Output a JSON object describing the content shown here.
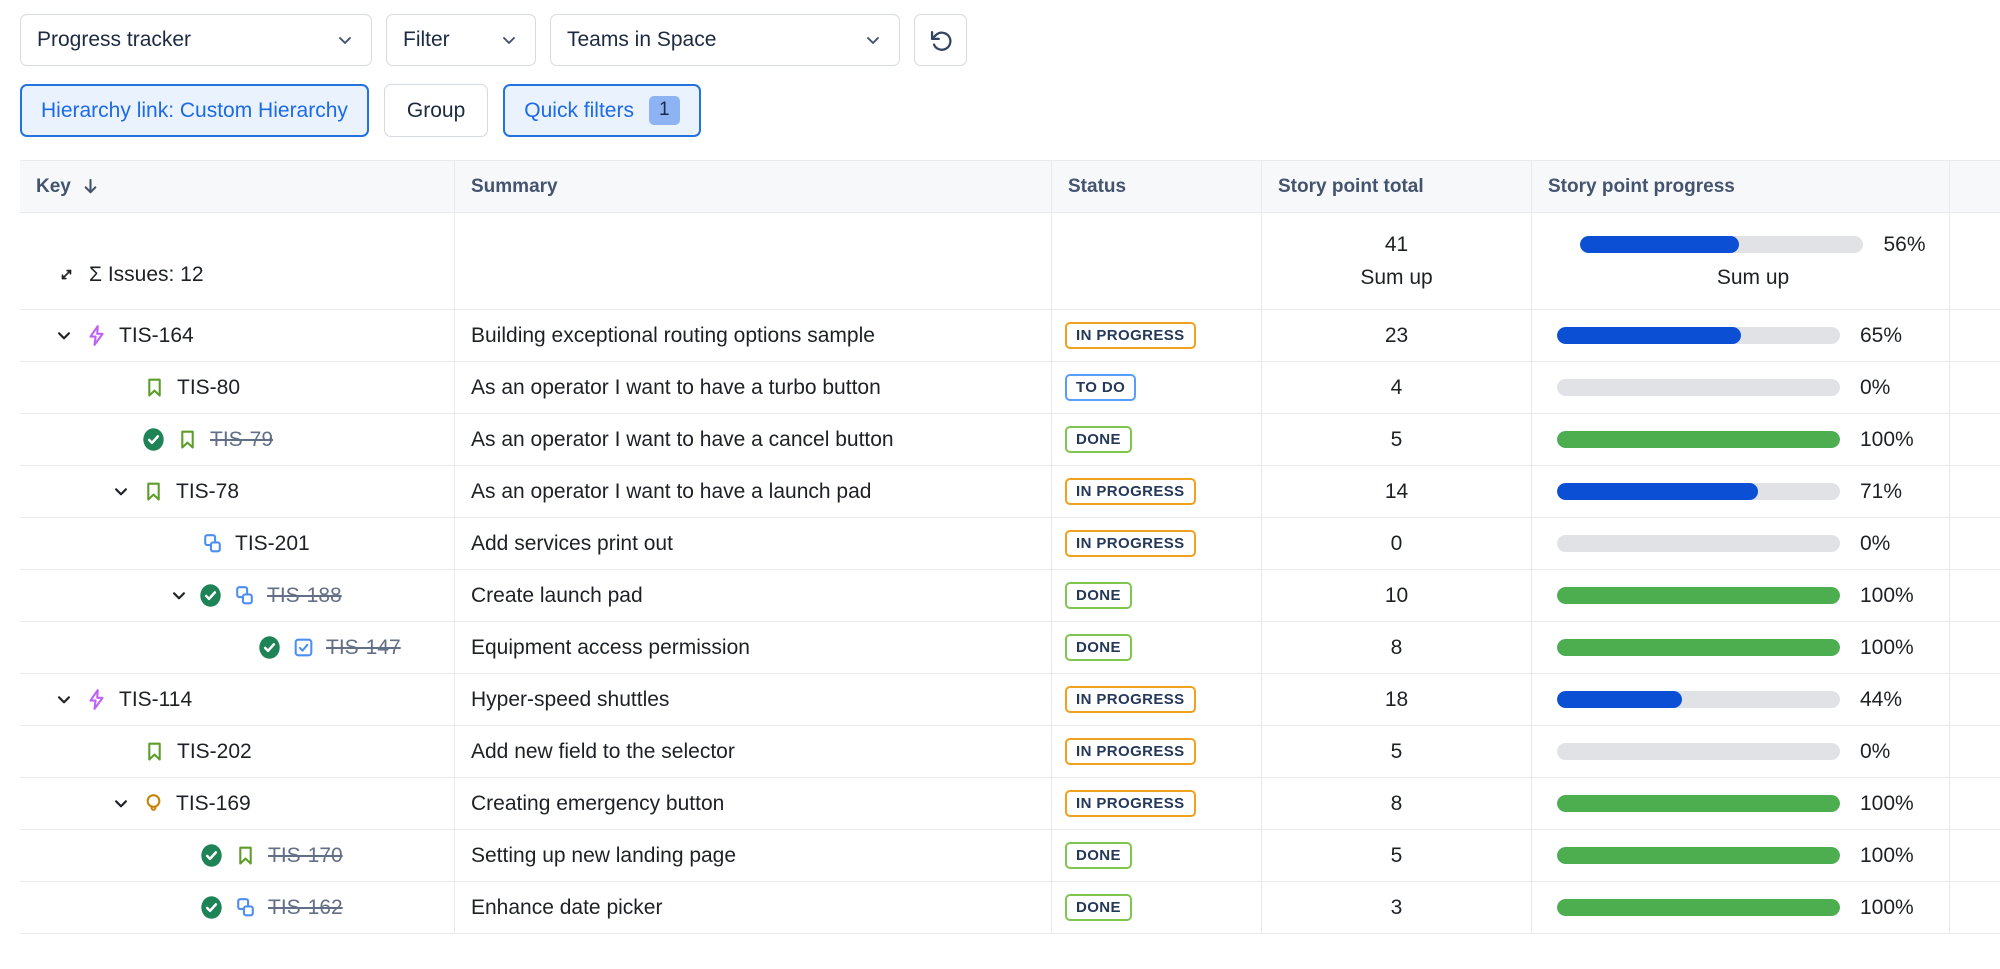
{
  "toolbar": {
    "view_select": {
      "value": "Progress tracker"
    },
    "filter_select": {
      "value": "Filter"
    },
    "team_select": {
      "value": "Teams in Space"
    },
    "hierarchy_button": "Hierarchy link: Custom Hierarchy",
    "group_button": "Group",
    "quick_filters": {
      "label": "Quick filters",
      "count": "1"
    }
  },
  "table": {
    "columns": {
      "key": "Key",
      "summary": "Summary",
      "status": "Status",
      "total": "Story point total",
      "progress": "Story point progress"
    },
    "sum_row": {
      "label": "Σ Issues: 12",
      "total": "41",
      "total_note": "Sum up",
      "percent": "56%",
      "percent_value": 56,
      "bar_color": "blue",
      "progress_note": "Sum up"
    },
    "rows": [
      {
        "key": "TIS-164",
        "summary": "Building exceptional routing options sample",
        "status": "IN PROGRESS",
        "status_variant": "inprogress",
        "total": "23",
        "percent": "65%",
        "percent_value": 65,
        "bar_color": "blue",
        "type": "epic",
        "indent": 35,
        "chevron": true,
        "done": false
      },
      {
        "key": "TIS-80",
        "summary": "As an operator I want to have a turbo button",
        "status": "TO DO",
        "status_variant": "todo",
        "total": "4",
        "percent": "0%",
        "percent_value": 0,
        "bar_color": "blue",
        "type": "story",
        "indent": 122,
        "chevron": false,
        "done": false
      },
      {
        "key": "TIS-79",
        "summary": "As an operator I want to have a cancel button",
        "status": "DONE",
        "status_variant": "done",
        "total": "5",
        "percent": "100%",
        "percent_value": 100,
        "bar_color": "green",
        "type": "story",
        "indent": 122,
        "chevron": false,
        "done": true
      },
      {
        "key": "TIS-78",
        "summary": "As an operator I want to have a launch pad",
        "status": "IN PROGRESS",
        "status_variant": "inprogress",
        "total": "14",
        "percent": "71%",
        "percent_value": 71,
        "bar_color": "blue",
        "type": "story",
        "indent": 92,
        "chevron": true,
        "done": false
      },
      {
        "key": "TIS-201",
        "summary": "Add services print out",
        "status": "IN PROGRESS",
        "status_variant": "inprogress",
        "total": "0",
        "percent": "0%",
        "percent_value": 0,
        "bar_color": "blue",
        "type": "subtask",
        "indent": 180,
        "chevron": false,
        "done": false
      },
      {
        "key": "TIS-188",
        "summary": "Create launch pad",
        "status": "DONE",
        "status_variant": "done",
        "total": "10",
        "percent": "100%",
        "percent_value": 100,
        "bar_color": "green",
        "type": "subtask",
        "indent": 150,
        "chevron": true,
        "done": true
      },
      {
        "key": "TIS-147",
        "summary": "Equipment access permission",
        "status": "DONE",
        "status_variant": "done",
        "total": "8",
        "percent": "100%",
        "percent_value": 100,
        "bar_color": "green",
        "type": "checkbox",
        "indent": 238,
        "chevron": false,
        "done": true
      },
      {
        "key": "TIS-114",
        "summary": "Hyper-speed shuttles",
        "status": "IN PROGRESS",
        "status_variant": "inprogress",
        "total": "18",
        "percent": "44%",
        "percent_value": 44,
        "bar_color": "blue",
        "type": "epic",
        "indent": 35,
        "chevron": true,
        "done": false
      },
      {
        "key": "TIS-202",
        "summary": "Add new field to the selector",
        "status": "IN PROGRESS",
        "status_variant": "inprogress",
        "total": "5",
        "percent": "0%",
        "percent_value": 0,
        "bar_color": "blue",
        "type": "story",
        "indent": 122,
        "chevron": false,
        "done": false
      },
      {
        "key": "TIS-169",
        "summary": "Creating emergency button",
        "status": "IN PROGRESS",
        "status_variant": "inprogress",
        "total": "8",
        "percent": "100%",
        "percent_value": 100,
        "bar_color": "green",
        "type": "bulb",
        "indent": 92,
        "chevron": true,
        "done": false
      },
      {
        "key": "TIS-170",
        "summary": "Setting up new landing page",
        "status": "DONE",
        "status_variant": "done",
        "total": "5",
        "percent": "100%",
        "percent_value": 100,
        "bar_color": "green",
        "type": "story",
        "indent": 180,
        "chevron": false,
        "done": true
      },
      {
        "key": "TIS-162",
        "summary": "Enhance date picker",
        "status": "DONE",
        "status_variant": "done",
        "total": "3",
        "percent": "100%",
        "percent_value": 100,
        "bar_color": "green",
        "type": "subtask",
        "indent": 180,
        "chevron": false,
        "done": true
      }
    ]
  },
  "colors": {
    "accent_blue": "#1D6AE5",
    "progress_blue": "#0B4FD5",
    "progress_green": "#4CAE4F",
    "progress_track": "#E1E2E6",
    "done_check_green": "#1E8356",
    "story_green": "#5D9E2A",
    "epic_purple": "#BF63F3",
    "subtask_blue": "#4C8FF0",
    "bulb_amber": "#C5850A",
    "badge_inprogress_border": "#F0A11E",
    "badge_todo_border": "#579DFF",
    "badge_done_border": "#7FC64F",
    "header_text": "#44546F"
  }
}
